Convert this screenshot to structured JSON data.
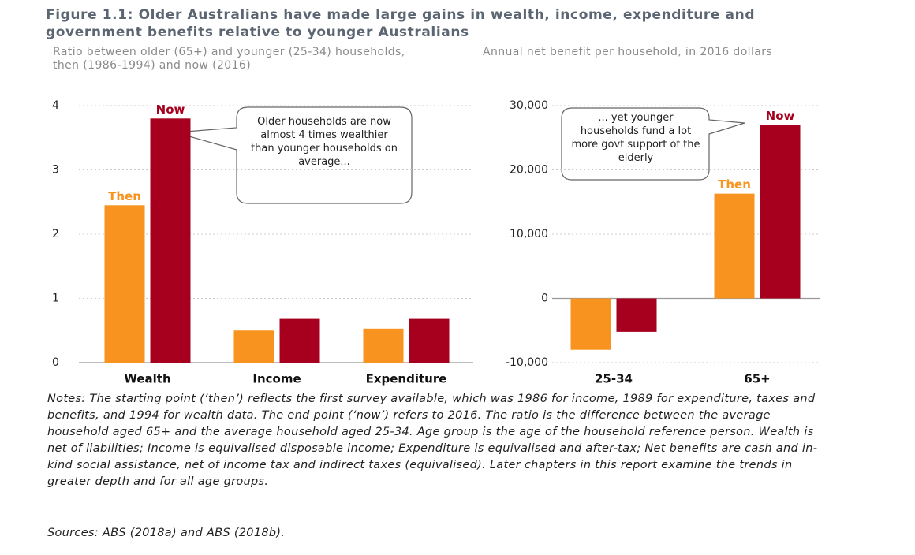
{
  "title": "Figure 1.1: Older Australians have made large gains in wealth, income, expenditure and government benefits relative to younger Australians",
  "notes": "Notes: The starting point (‘then’) reflects the first survey available, which was 1986 for income, 1989 for expenditure, taxes and benefits, and 1994 for wealth data. The end point (‘now’) refers to 2016. The ratio is the difference between the average household aged 65+ and the average household aged 25-34. Age group is the age of the household reference person. Wealth is net of liabilities; Income is equivalised disposable income; Expenditure is equivalised and after-tax; Net benefits are cash and in-kind social assistance, net of income tax and indirect taxes (equivalised). Later chapters in this report examine the trends in greater depth and for all age groups.",
  "sources": "Sources: ABS (2018a) and ABS (2018b).",
  "chart_data": [
    {
      "type": "bar",
      "y_label": "Ratio between older (65+) and younger (25-34) households, then (1986-1994) and now (2016)",
      "annotation": "Older households are now almost 4 times wealthier than younger households on average...",
      "categories": [
        "Wealth",
        "Income",
        "Expenditure"
      ],
      "series": [
        {
          "name": "Then",
          "color": "#f7931e",
          "values": [
            2.45,
            0.5,
            0.53
          ]
        },
        {
          "name": "Now",
          "color": "#a6001e",
          "values": [
            3.8,
            0.68,
            0.68
          ]
        }
      ],
      "ylim": [
        0,
        4
      ],
      "yticks": [
        0,
        1,
        2,
        3,
        4
      ],
      "grid": true
    },
    {
      "type": "bar",
      "y_label": "Annual net benefit per household, in 2016 dollars",
      "annotation": "... yet younger households fund a lot more govt support of the elderly",
      "categories": [
        "25-34",
        "65+"
      ],
      "series": [
        {
          "name": "Then",
          "color": "#f7931e",
          "values": [
            -8000,
            16300
          ]
        },
        {
          "name": "Now",
          "color": "#a6001e",
          "values": [
            -5200,
            27000
          ]
        }
      ],
      "ylim": [
        -10000,
        30000
      ],
      "yticks": [
        {
          "value": -10000,
          "label": "-10,000"
        },
        0,
        {
          "value": 10000,
          "label": "10,000"
        },
        {
          "value": 20000,
          "label": "20,000"
        },
        {
          "value": 30000,
          "label": "30,000"
        }
      ],
      "grid": true
    }
  ]
}
